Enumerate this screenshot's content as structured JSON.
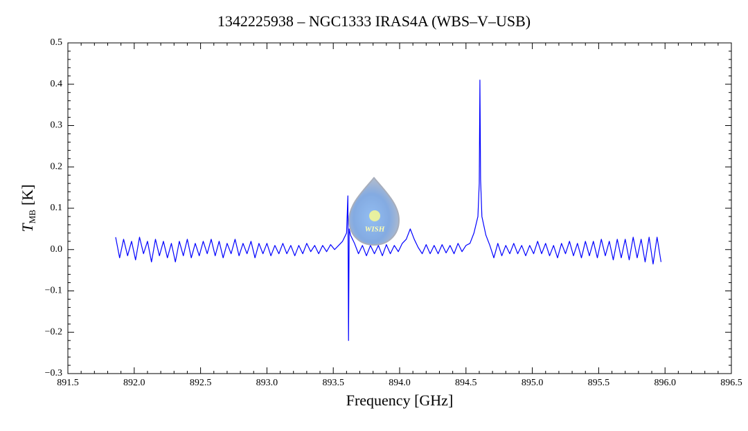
{
  "chart_data": {
    "type": "line",
    "title": "1342225938 – NGC1333 IRAS4A (WBS–V–USB)",
    "xlabel": "Frequency [GHz]",
    "ylabel": "T",
    "ylabel_sub": "MB",
    "ylabel_unit": "[K]",
    "logo_text": "WISH",
    "color": "#0000ff",
    "xlim": [
      891.5,
      896.5
    ],
    "ylim": [
      -0.3,
      0.5
    ],
    "xticks": [
      891.5,
      {
        "value": 892,
        "label": "892.0"
      },
      892.5,
      {
        "value": 893,
        "label": "893.0"
      },
      893.5,
      {
        "value": 894,
        "label": "894.0"
      },
      894.5,
      {
        "value": 895,
        "label": "895.0"
      },
      895.5,
      {
        "value": 896,
        "label": "896.0"
      },
      896.5
    ],
    "yticks": [
      {
        "value": -0.3,
        "label": "−0.3"
      },
      {
        "value": -0.2,
        "label": "−0.2"
      },
      {
        "value": -0.1,
        "label": "−0.1"
      },
      {
        "value": 0,
        "label": "0.0"
      },
      0.1,
      0.2,
      0.3,
      0.4,
      0.5
    ],
    "x": [
      891.86,
      891.89,
      891.92,
      891.95,
      891.98,
      892.01,
      892.04,
      892.07,
      892.1,
      892.13,
      892.16,
      892.19,
      892.22,
      892.25,
      892.28,
      892.31,
      892.34,
      892.37,
      892.4,
      892.43,
      892.46,
      892.49,
      892.52,
      892.55,
      892.58,
      892.61,
      892.64,
      892.67,
      892.7,
      892.73,
      892.76,
      892.79,
      892.82,
      892.85,
      892.88,
      892.91,
      892.94,
      892.97,
      893.0,
      893.03,
      893.06,
      893.09,
      893.12,
      893.15,
      893.18,
      893.21,
      893.24,
      893.27,
      893.3,
      893.33,
      893.36,
      893.39,
      893.42,
      893.45,
      893.48,
      893.51,
      893.54,
      893.57,
      893.6,
      893.61,
      893.615,
      893.62,
      893.63,
      893.66,
      893.69,
      893.72,
      893.75,
      893.78,
      893.81,
      893.84,
      893.87,
      893.9,
      893.93,
      893.96,
      893.99,
      894.02,
      894.05,
      894.08,
      894.11,
      894.14,
      894.17,
      894.2,
      894.23,
      894.26,
      894.29,
      894.32,
      894.35,
      894.38,
      894.41,
      894.44,
      894.47,
      894.5,
      894.53,
      894.56,
      894.59,
      894.6,
      894.605,
      894.61,
      894.62,
      894.65,
      894.68,
      894.71,
      894.74,
      894.77,
      894.8,
      894.83,
      894.86,
      894.89,
      894.92,
      894.95,
      894.98,
      895.01,
      895.04,
      895.07,
      895.1,
      895.13,
      895.16,
      895.19,
      895.22,
      895.25,
      895.28,
      895.31,
      895.34,
      895.37,
      895.4,
      895.43,
      895.46,
      895.49,
      895.52,
      895.55,
      895.58,
      895.61,
      895.64,
      895.67,
      895.7,
      895.73,
      895.76,
      895.79,
      895.82,
      895.85,
      895.88,
      895.91,
      895.94,
      895.97
    ],
    "values": [
      0.03,
      -0.02,
      0.025,
      -0.015,
      0.02,
      -0.025,
      0.03,
      -0.01,
      0.02,
      -0.03,
      0.025,
      -0.015,
      0.02,
      -0.02,
      0.015,
      -0.03,
      0.02,
      -0.015,
      0.025,
      -0.02,
      0.015,
      -0.015,
      0.02,
      -0.01,
      0.025,
      -0.015,
      0.02,
      -0.02,
      0.015,
      -0.01,
      0.025,
      -0.015,
      0.015,
      -0.01,
      0.02,
      -0.02,
      0.015,
      -0.01,
      0.015,
      -0.015,
      0.01,
      -0.01,
      0.015,
      -0.01,
      0.01,
      -0.015,
      0.01,
      -0.01,
      0.015,
      -0.005,
      0.01,
      -0.01,
      0.01,
      -0.005,
      0.012,
      0.0,
      0.01,
      0.02,
      0.04,
      0.13,
      -0.22,
      0.05,
      0.035,
      0.015,
      -0.01,
      0.01,
      -0.015,
      0.01,
      -0.01,
      0.01,
      -0.015,
      0.012,
      -0.01,
      0.01,
      -0.005,
      0.015,
      0.025,
      0.05,
      0.025,
      0.005,
      -0.01,
      0.012,
      -0.01,
      0.01,
      -0.01,
      0.012,
      -0.008,
      0.01,
      -0.01,
      0.015,
      -0.005,
      0.01,
      0.015,
      0.04,
      0.08,
      0.16,
      0.41,
      0.17,
      0.08,
      0.035,
      0.01,
      -0.02,
      0.015,
      -0.015,
      0.01,
      -0.01,
      0.015,
      -0.01,
      0.01,
      -0.015,
      0.01,
      -0.01,
      0.02,
      -0.01,
      0.015,
      -0.015,
      0.01,
      -0.02,
      0.015,
      -0.01,
      0.02,
      -0.015,
      0.015,
      -0.02,
      0.02,
      -0.015,
      0.02,
      -0.02,
      0.025,
      -0.015,
      0.02,
      -0.025,
      0.025,
      -0.02,
      0.025,
      -0.025,
      0.03,
      -0.02,
      0.025,
      -0.03,
      0.03,
      -0.035,
      0.03,
      -0.03
    ]
  }
}
